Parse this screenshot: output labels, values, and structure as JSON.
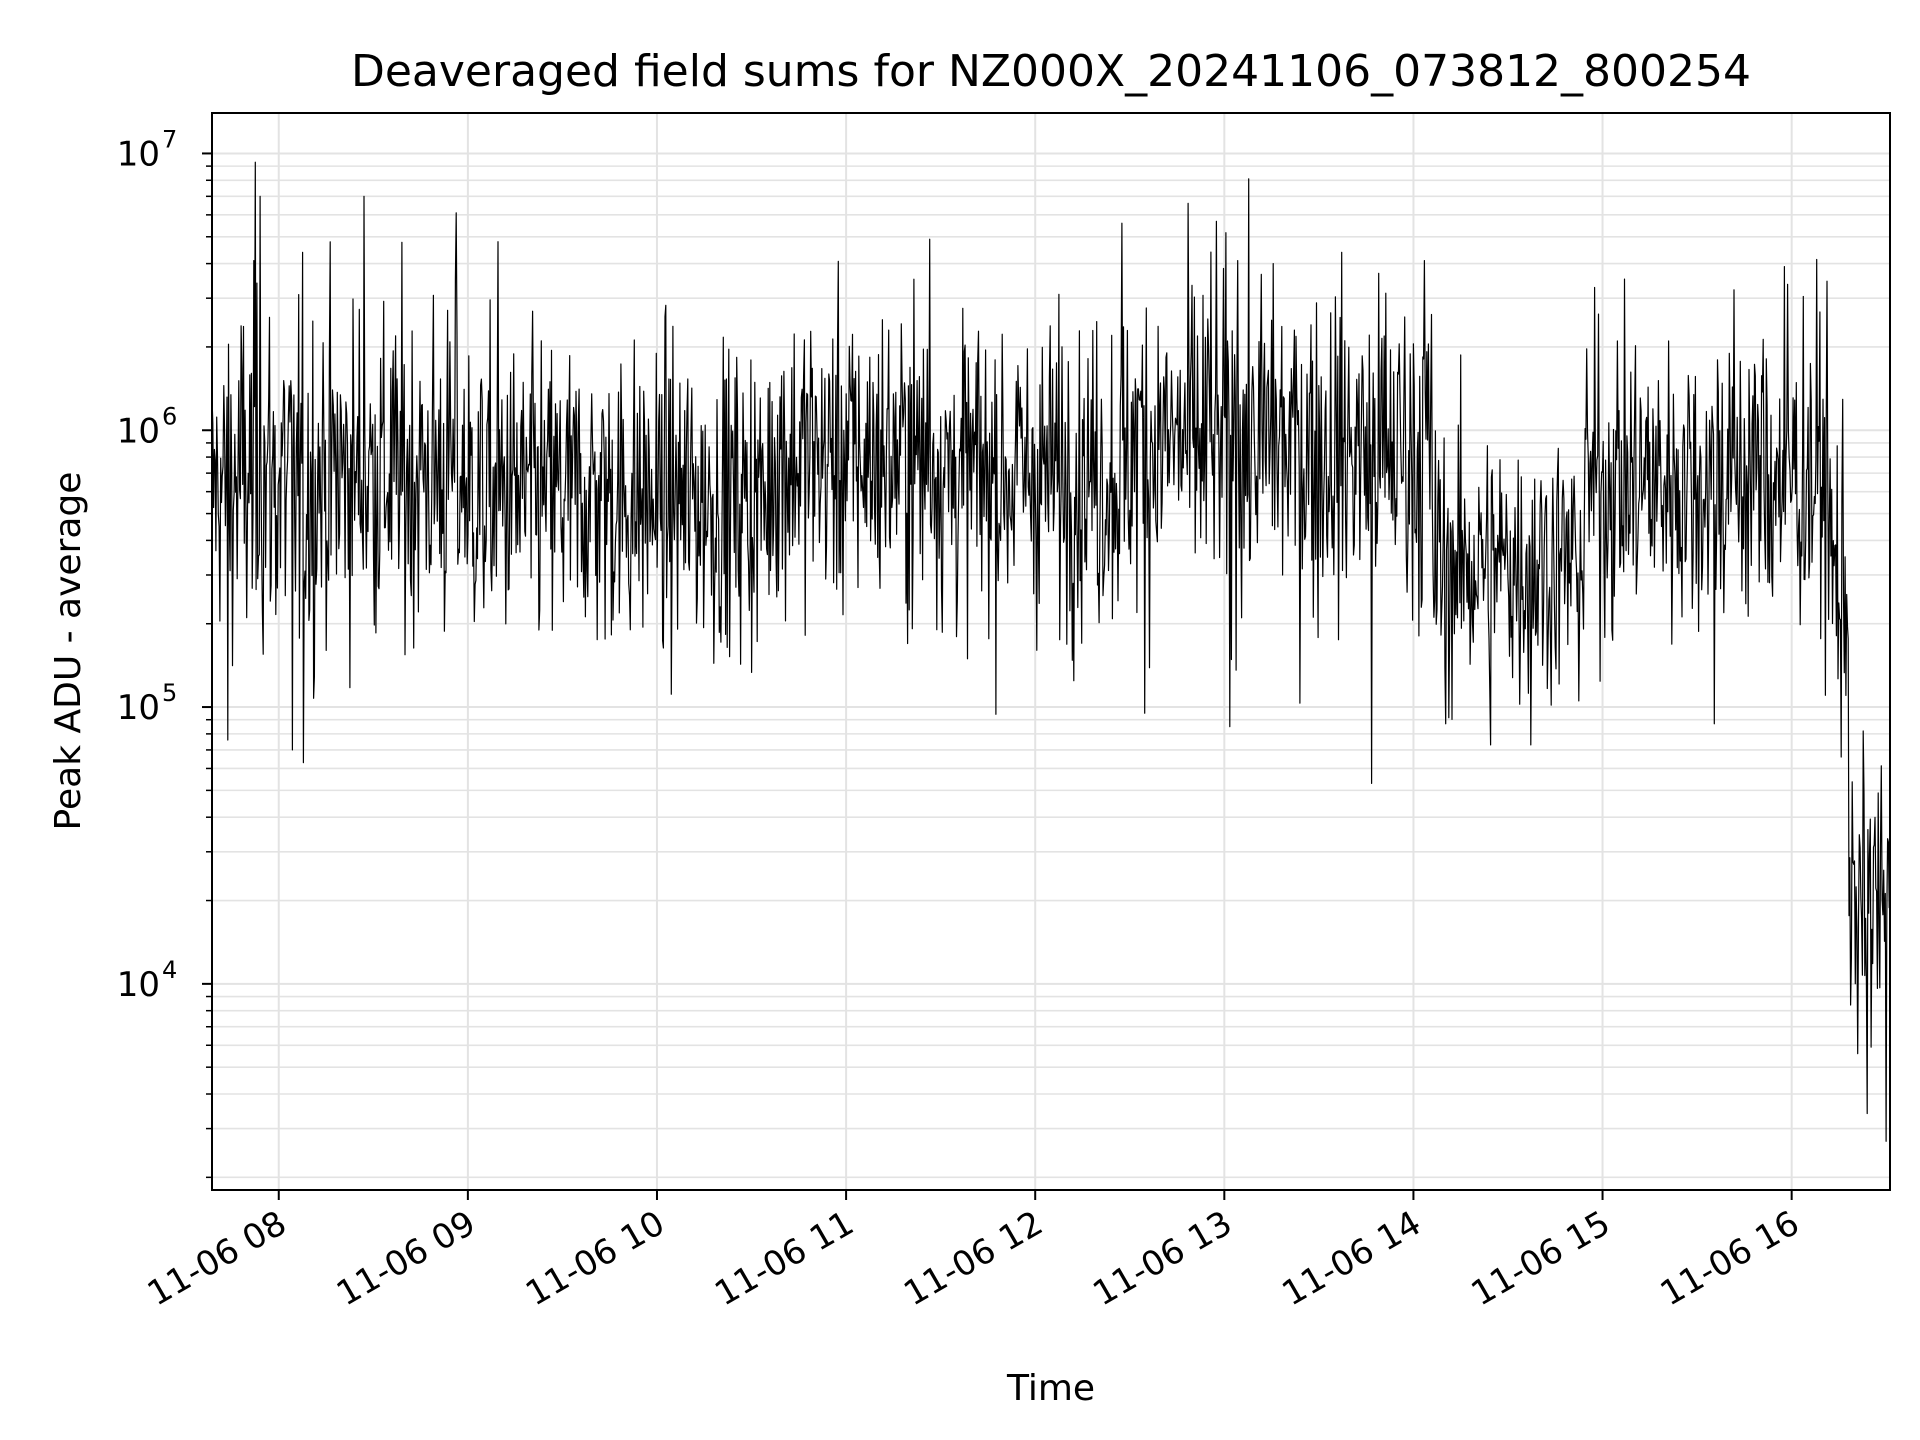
{
  "chart_data": {
    "type": "line",
    "title": "Deaveraged field sums for NZ000X_20241106_073812_800254",
    "xlabel": "Time",
    "ylabel": "Peak ADU - average",
    "x_tick_labels": [
      "11-06 08",
      "11-06 09",
      "11-06 10",
      "11-06 11",
      "11-06 12",
      "11-06 13",
      "11-06 14",
      "11-06 15",
      "11-06 16"
    ],
    "x_tick_hours": [
      8,
      9,
      10,
      11,
      12,
      13,
      14,
      15,
      16
    ],
    "xlim_hours": [
      7.647,
      16.52
    ],
    "y_scale": "log",
    "ylim": [
      1800,
      14000000
    ],
    "y_tick_values": [
      10000,
      100000,
      1000000,
      10000000
    ],
    "y_tick_mantissa": "10",
    "y_tick_exponents": [
      "4",
      "5",
      "6",
      "7"
    ],
    "grid": true,
    "line_color": "#000000",
    "grid_color": "#e3e3e3",
    "series": [
      {
        "segments": [
          {
            "t_start": 7.647,
            "t_end": 7.72,
            "median": 620000,
            "spread": 0.45
          },
          {
            "t_start": 7.72,
            "t_end": 8.2,
            "median": 650000,
            "spread": 0.6
          },
          {
            "t_start": 8.2,
            "t_end": 9.0,
            "median": 700000,
            "spread": 0.55
          },
          {
            "t_start": 9.0,
            "t_end": 9.8,
            "median": 580000,
            "spread": 0.5
          },
          {
            "t_start": 9.8,
            "t_end": 10.6,
            "median": 560000,
            "spread": 0.5
          },
          {
            "t_start": 10.6,
            "t_end": 11.5,
            "median": 800000,
            "spread": 0.5
          },
          {
            "t_start": 11.5,
            "t_end": 12.5,
            "median": 700000,
            "spread": 0.5
          },
          {
            "t_start": 12.5,
            "t_end": 13.3,
            "median": 900000,
            "spread": 0.55
          },
          {
            "t_start": 13.3,
            "t_end": 14.1,
            "median": 850000,
            "spread": 0.55
          },
          {
            "t_start": 14.1,
            "t_end": 14.9,
            "median": 330000,
            "spread": 0.45
          },
          {
            "t_start": 14.9,
            "t_end": 15.6,
            "median": 650000,
            "spread": 0.5
          },
          {
            "t_start": 15.6,
            "t_end": 16.2,
            "median": 700000,
            "spread": 0.55
          },
          {
            "t_start": 16.2,
            "t_end": 16.3,
            "median": 300000,
            "spread": 0.5
          },
          {
            "t_start": 16.3,
            "t_end": 16.52,
            "median": 20000,
            "spread": 0.45
          }
        ],
        "spikes": [
          {
            "t": 7.875,
            "value": 9300000
          },
          {
            "t": 7.9,
            "value": 7000000
          },
          {
            "t": 8.45,
            "value": 7000000
          },
          {
            "t": 8.94,
            "value": 6100000
          },
          {
            "t": 9.16,
            "value": 4800000
          },
          {
            "t": 11.44,
            "value": 4900000
          },
          {
            "t": 12.46,
            "value": 5600000
          },
          {
            "t": 12.93,
            "value": 4400000
          },
          {
            "t": 13.07,
            "value": 4100000
          },
          {
            "t": 13.26,
            "value": 4000000
          },
          {
            "t": 14.06,
            "value": 4100000
          },
          {
            "t": 15.96,
            "value": 3900000
          },
          {
            "t": 8.07,
            "value": 70000
          },
          {
            "t": 8.13,
            "value": 63000
          },
          {
            "t": 7.73,
            "value": 76000
          },
          {
            "t": 12.58,
            "value": 95000
          },
          {
            "t": 13.03,
            "value": 85000
          },
          {
            "t": 13.78,
            "value": 53000
          },
          {
            "t": 14.17,
            "value": 87000
          },
          {
            "t": 14.41,
            "value": 73000
          },
          {
            "t": 14.62,
            "value": 73000
          },
          {
            "t": 15.59,
            "value": 87000
          },
          {
            "t": 16.26,
            "value": 66000
          },
          {
            "t": 16.5,
            "value": 2700
          },
          {
            "t": 16.4,
            "value": 3400
          },
          {
            "t": 16.35,
            "value": 5600
          }
        ],
        "samples_per_hour": 240
      }
    ]
  }
}
